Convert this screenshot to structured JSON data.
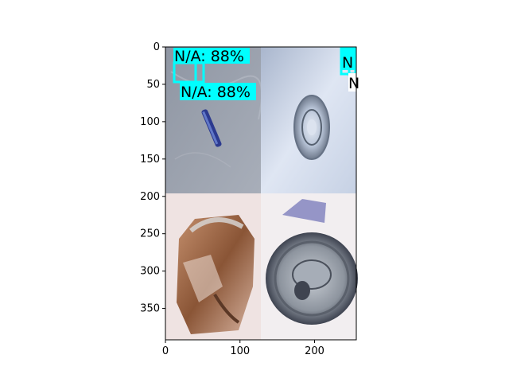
{
  "figure": {
    "x_axis": {
      "range": [
        0,
        256
      ],
      "ticks": [
        "0",
        "100",
        "200"
      ]
    },
    "y_axis": {
      "range": [
        392,
        0
      ],
      "ticks": [
        "0",
        "50",
        "100",
        "150",
        "200",
        "250",
        "300",
        "350"
      ]
    },
    "panels": [
      {
        "description": "blue pen / battery on gray surface",
        "colors": [
          "#7a8291",
          "#a3a9b4",
          "#2d3a8c"
        ]
      },
      {
        "description": "metal bottle cap close-up on light blue",
        "colors": [
          "#c9d4e7",
          "#8e9bb0",
          "#f1f4fa"
        ]
      },
      {
        "description": "crushed copper can",
        "colors": [
          "#efe3e2",
          "#a56a46",
          "#6a4532"
        ]
      },
      {
        "description": "crushed aluminum can top",
        "colors": [
          "#f2eef0",
          "#9aa2ad",
          "#3b3f4a"
        ]
      }
    ],
    "detections": [
      {
        "label": "N/A: 88%"
      },
      {
        "label": "N/A: 88%"
      },
      {
        "label": "N"
      },
      {
        "label": "N"
      }
    ],
    "box_color": "#00ffff"
  }
}
